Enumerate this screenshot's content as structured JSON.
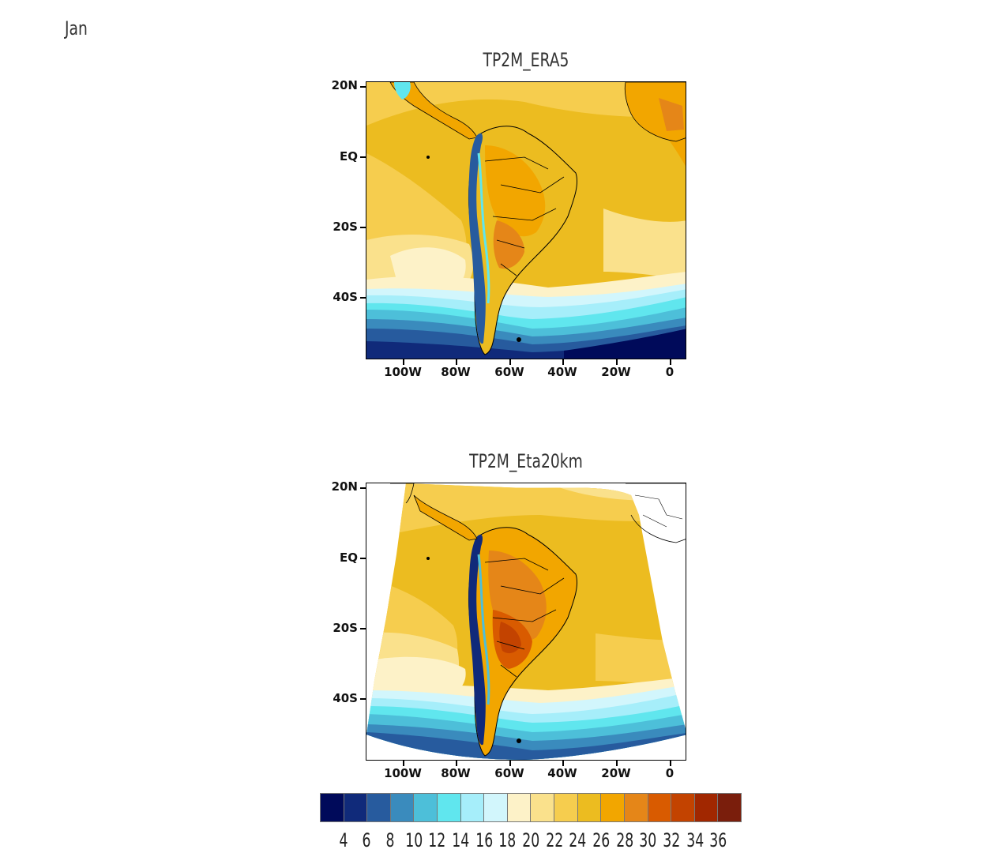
{
  "month": "Jan",
  "maps": [
    {
      "id": "era5",
      "title": "TP2M_ERA5",
      "lat_ticks": [
        "20N",
        "EQ",
        "20S",
        "40S"
      ],
      "lon_ticks": [
        "100W",
        "80W",
        "60W",
        "40W",
        "20W",
        "0"
      ]
    },
    {
      "id": "eta",
      "title": "TP2M_Eta20km",
      "lat_ticks": [
        "20N",
        "EQ",
        "20S",
        "40S"
      ],
      "lon_ticks": [
        "100W",
        "80W",
        "60W",
        "40W",
        "20W",
        "0"
      ]
    }
  ],
  "colorbar": {
    "colors": [
      "#000a5a",
      "#102a7a",
      "#275b9e",
      "#3a8bbd",
      "#4dbfd9",
      "#60e6ee",
      "#a6eefa",
      "#d2f6fc",
      "#fdf2c8",
      "#fae18c",
      "#f6cd4e",
      "#ecbc20",
      "#f2a600",
      "#e58618",
      "#d95b00",
      "#c34300",
      "#a12700",
      "#7a1e0c"
    ],
    "labels": [
      "4",
      "6",
      "8",
      "10",
      "12",
      "14",
      "16",
      "18",
      "20",
      "22",
      "24",
      "26",
      "28",
      "30",
      "32",
      "34",
      "36"
    ]
  }
}
